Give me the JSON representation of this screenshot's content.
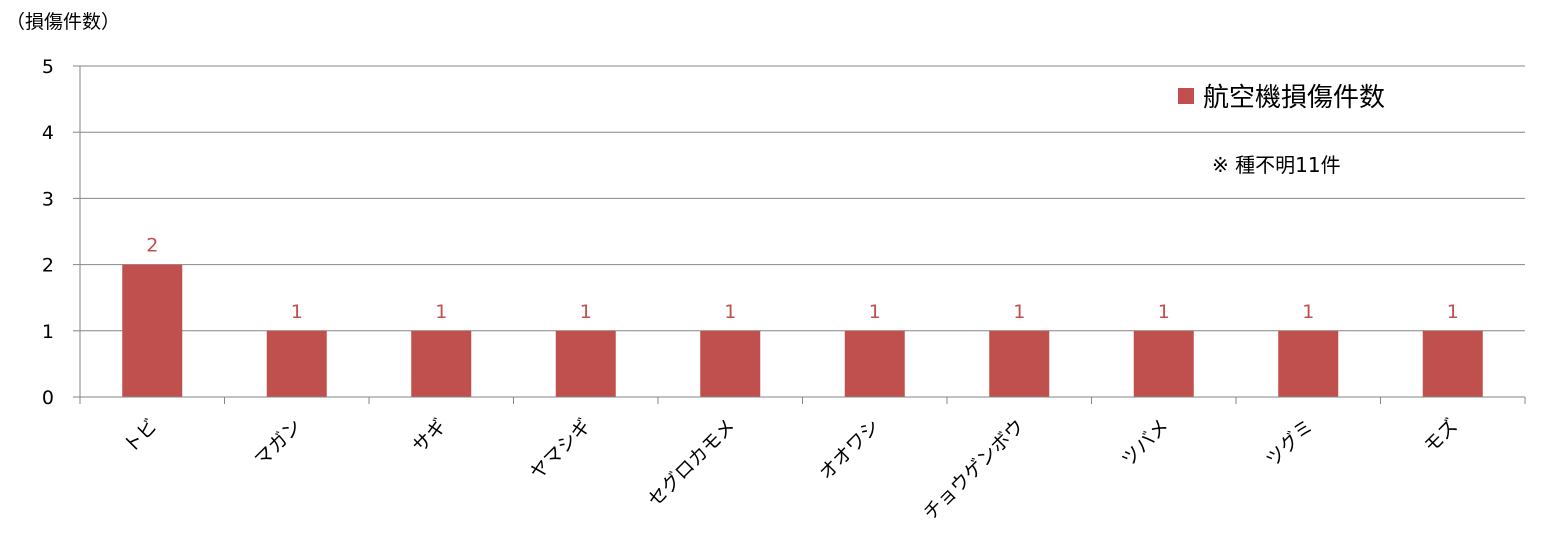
{
  "chart_data": {
    "type": "bar",
    "ylabel": "（損傷件数）",
    "categories": [
      "トビ",
      "マガン",
      "サギ",
      "ヤマシギ",
      "セグロカモメ",
      "オオワシ",
      "チョウゲンボウ",
      "ツバメ",
      "ツグミ",
      "モズ"
    ],
    "series": [
      {
        "name": "航空機損傷件数",
        "values": [
          2,
          1,
          1,
          1,
          1,
          1,
          1,
          1,
          1,
          1
        ],
        "color": "#C0504D"
      }
    ],
    "ylim": [
      0,
      5
    ],
    "yticks": [
      0,
      1,
      2,
      3,
      4,
      5
    ],
    "grid": true,
    "legend_position": "top-right",
    "annotation": "※ 種不明11件",
    "data_labels": true
  },
  "colors": {
    "bar": "#C0504D",
    "data_label": "#C0504D",
    "grid": "#868686",
    "axis": "#868686"
  }
}
